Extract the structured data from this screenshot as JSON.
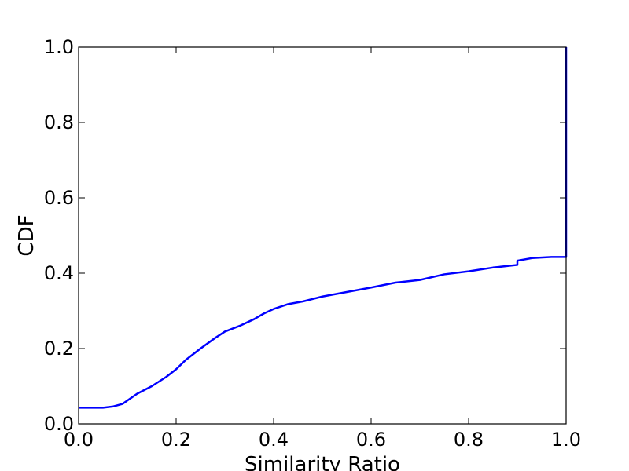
{
  "chart_data": {
    "type": "line",
    "title": "",
    "xlabel": "Similarity Ratio",
    "ylabel": "CDF",
    "xlim": [
      0.0,
      1.0
    ],
    "ylim": [
      0.0,
      1.0
    ],
    "xticks": [
      "0.0",
      "0.2",
      "0.4",
      "0.6",
      "0.8",
      "1.0"
    ],
    "yticks": [
      "0.0",
      "0.2",
      "0.4",
      "0.6",
      "0.8",
      "1.0"
    ],
    "grid": false,
    "legend": "none",
    "series": [
      {
        "color": "#0000ff",
        "x": [
          0.0,
          0.05,
          0.07,
          0.09,
          0.1,
          0.12,
          0.15,
          0.18,
          0.2,
          0.22,
          0.25,
          0.28,
          0.3,
          0.33,
          0.36,
          0.38,
          0.4,
          0.43,
          0.46,
          0.5,
          0.55,
          0.6,
          0.65,
          0.7,
          0.75,
          0.8,
          0.85,
          0.9,
          0.9,
          0.93,
          0.97,
          1.0,
          1.0
        ],
        "y": [
          0.043,
          0.043,
          0.046,
          0.053,
          0.062,
          0.08,
          0.1,
          0.125,
          0.145,
          0.17,
          0.2,
          0.228,
          0.245,
          0.26,
          0.278,
          0.293,
          0.305,
          0.318,
          0.325,
          0.338,
          0.35,
          0.362,
          0.375,
          0.382,
          0.397,
          0.405,
          0.415,
          0.422,
          0.433,
          0.44,
          0.443,
          0.443,
          1.0
        ]
      }
    ]
  }
}
